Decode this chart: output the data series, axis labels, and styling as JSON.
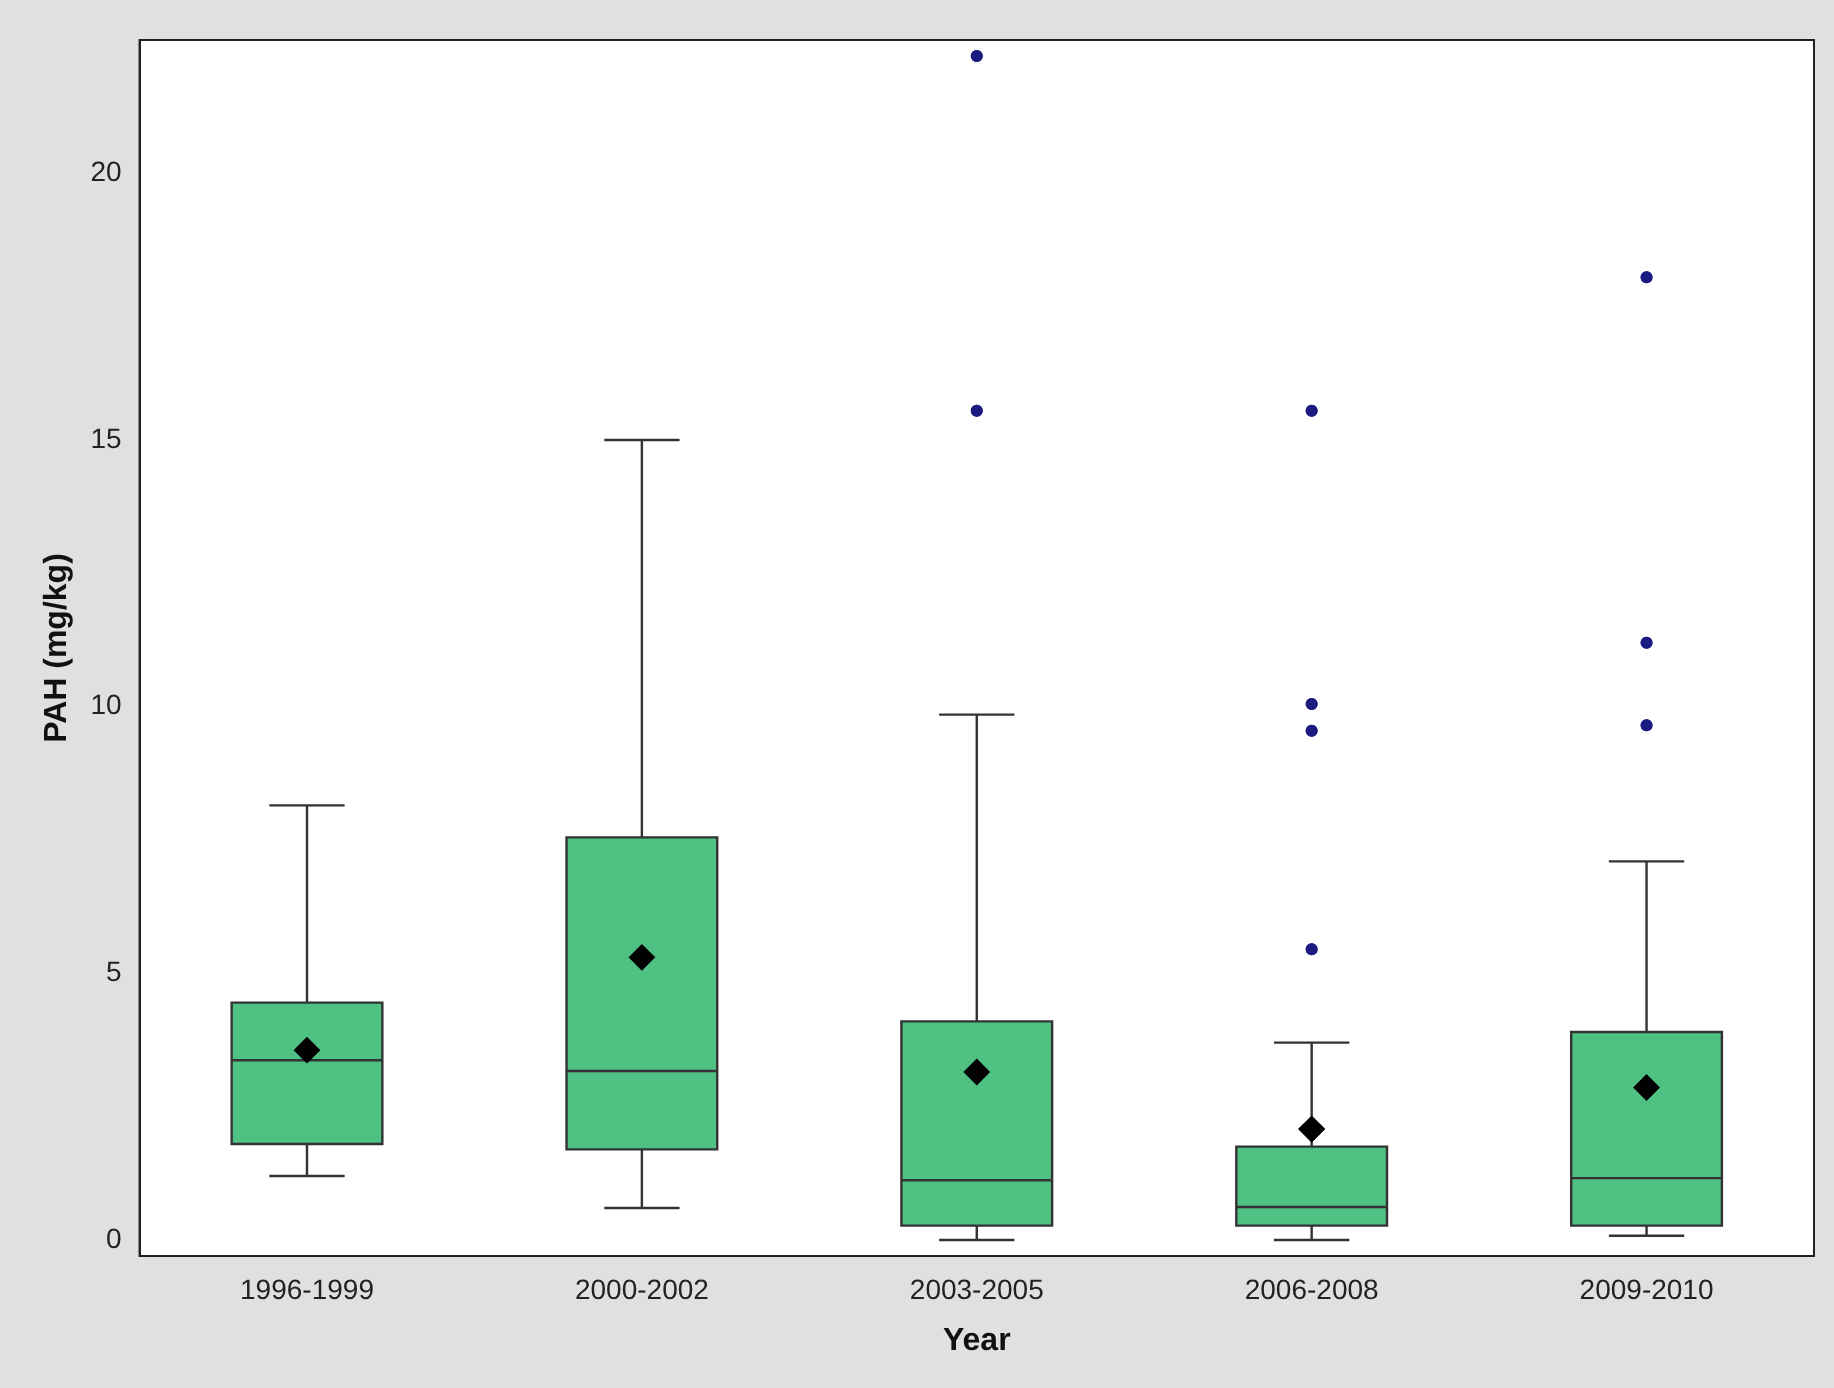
{
  "chart_data": {
    "type": "box",
    "xlabel": "Year",
    "ylabel": "PAH (mg/kg)",
    "categories": [
      "1996-1999",
      "2000-2002",
      "2003-2005",
      "2006-2008",
      "2009-2010"
    ],
    "color": "#4fc182",
    "grid": false,
    "legend": false,
    "ylim": [
      -0.3,
      22.5
    ],
    "yticks": [
      0,
      5,
      10,
      15,
      20
    ],
    "boxes": [
      {
        "low": 1.2,
        "q1": 1.8,
        "median": 3.37,
        "q3": 4.45,
        "high": 8.15,
        "mean": 3.56
      },
      {
        "low": 0.6,
        "q1": 1.7,
        "median": 3.17,
        "q3": 7.55,
        "high": 15.0,
        "mean": 5.3
      },
      {
        "low": 0.0,
        "q1": 0.27,
        "median": 1.12,
        "q3": 4.1,
        "high": 9.85,
        "mean": 3.15,
        "outliers": [
          15.55,
          22.2
        ]
      },
      {
        "low": 0.0,
        "q1": 0.27,
        "median": 0.62,
        "q3": 1.75,
        "high": 3.7,
        "mean": 2.08,
        "outliers": [
          5.45,
          9.55,
          10.05,
          15.55
        ]
      },
      {
        "low": 0.08,
        "q1": 0.27,
        "median": 1.16,
        "q3": 3.9,
        "high": 7.1,
        "mean": 2.86,
        "outliers": [
          9.65,
          11.2,
          18.05
        ]
      }
    ]
  }
}
